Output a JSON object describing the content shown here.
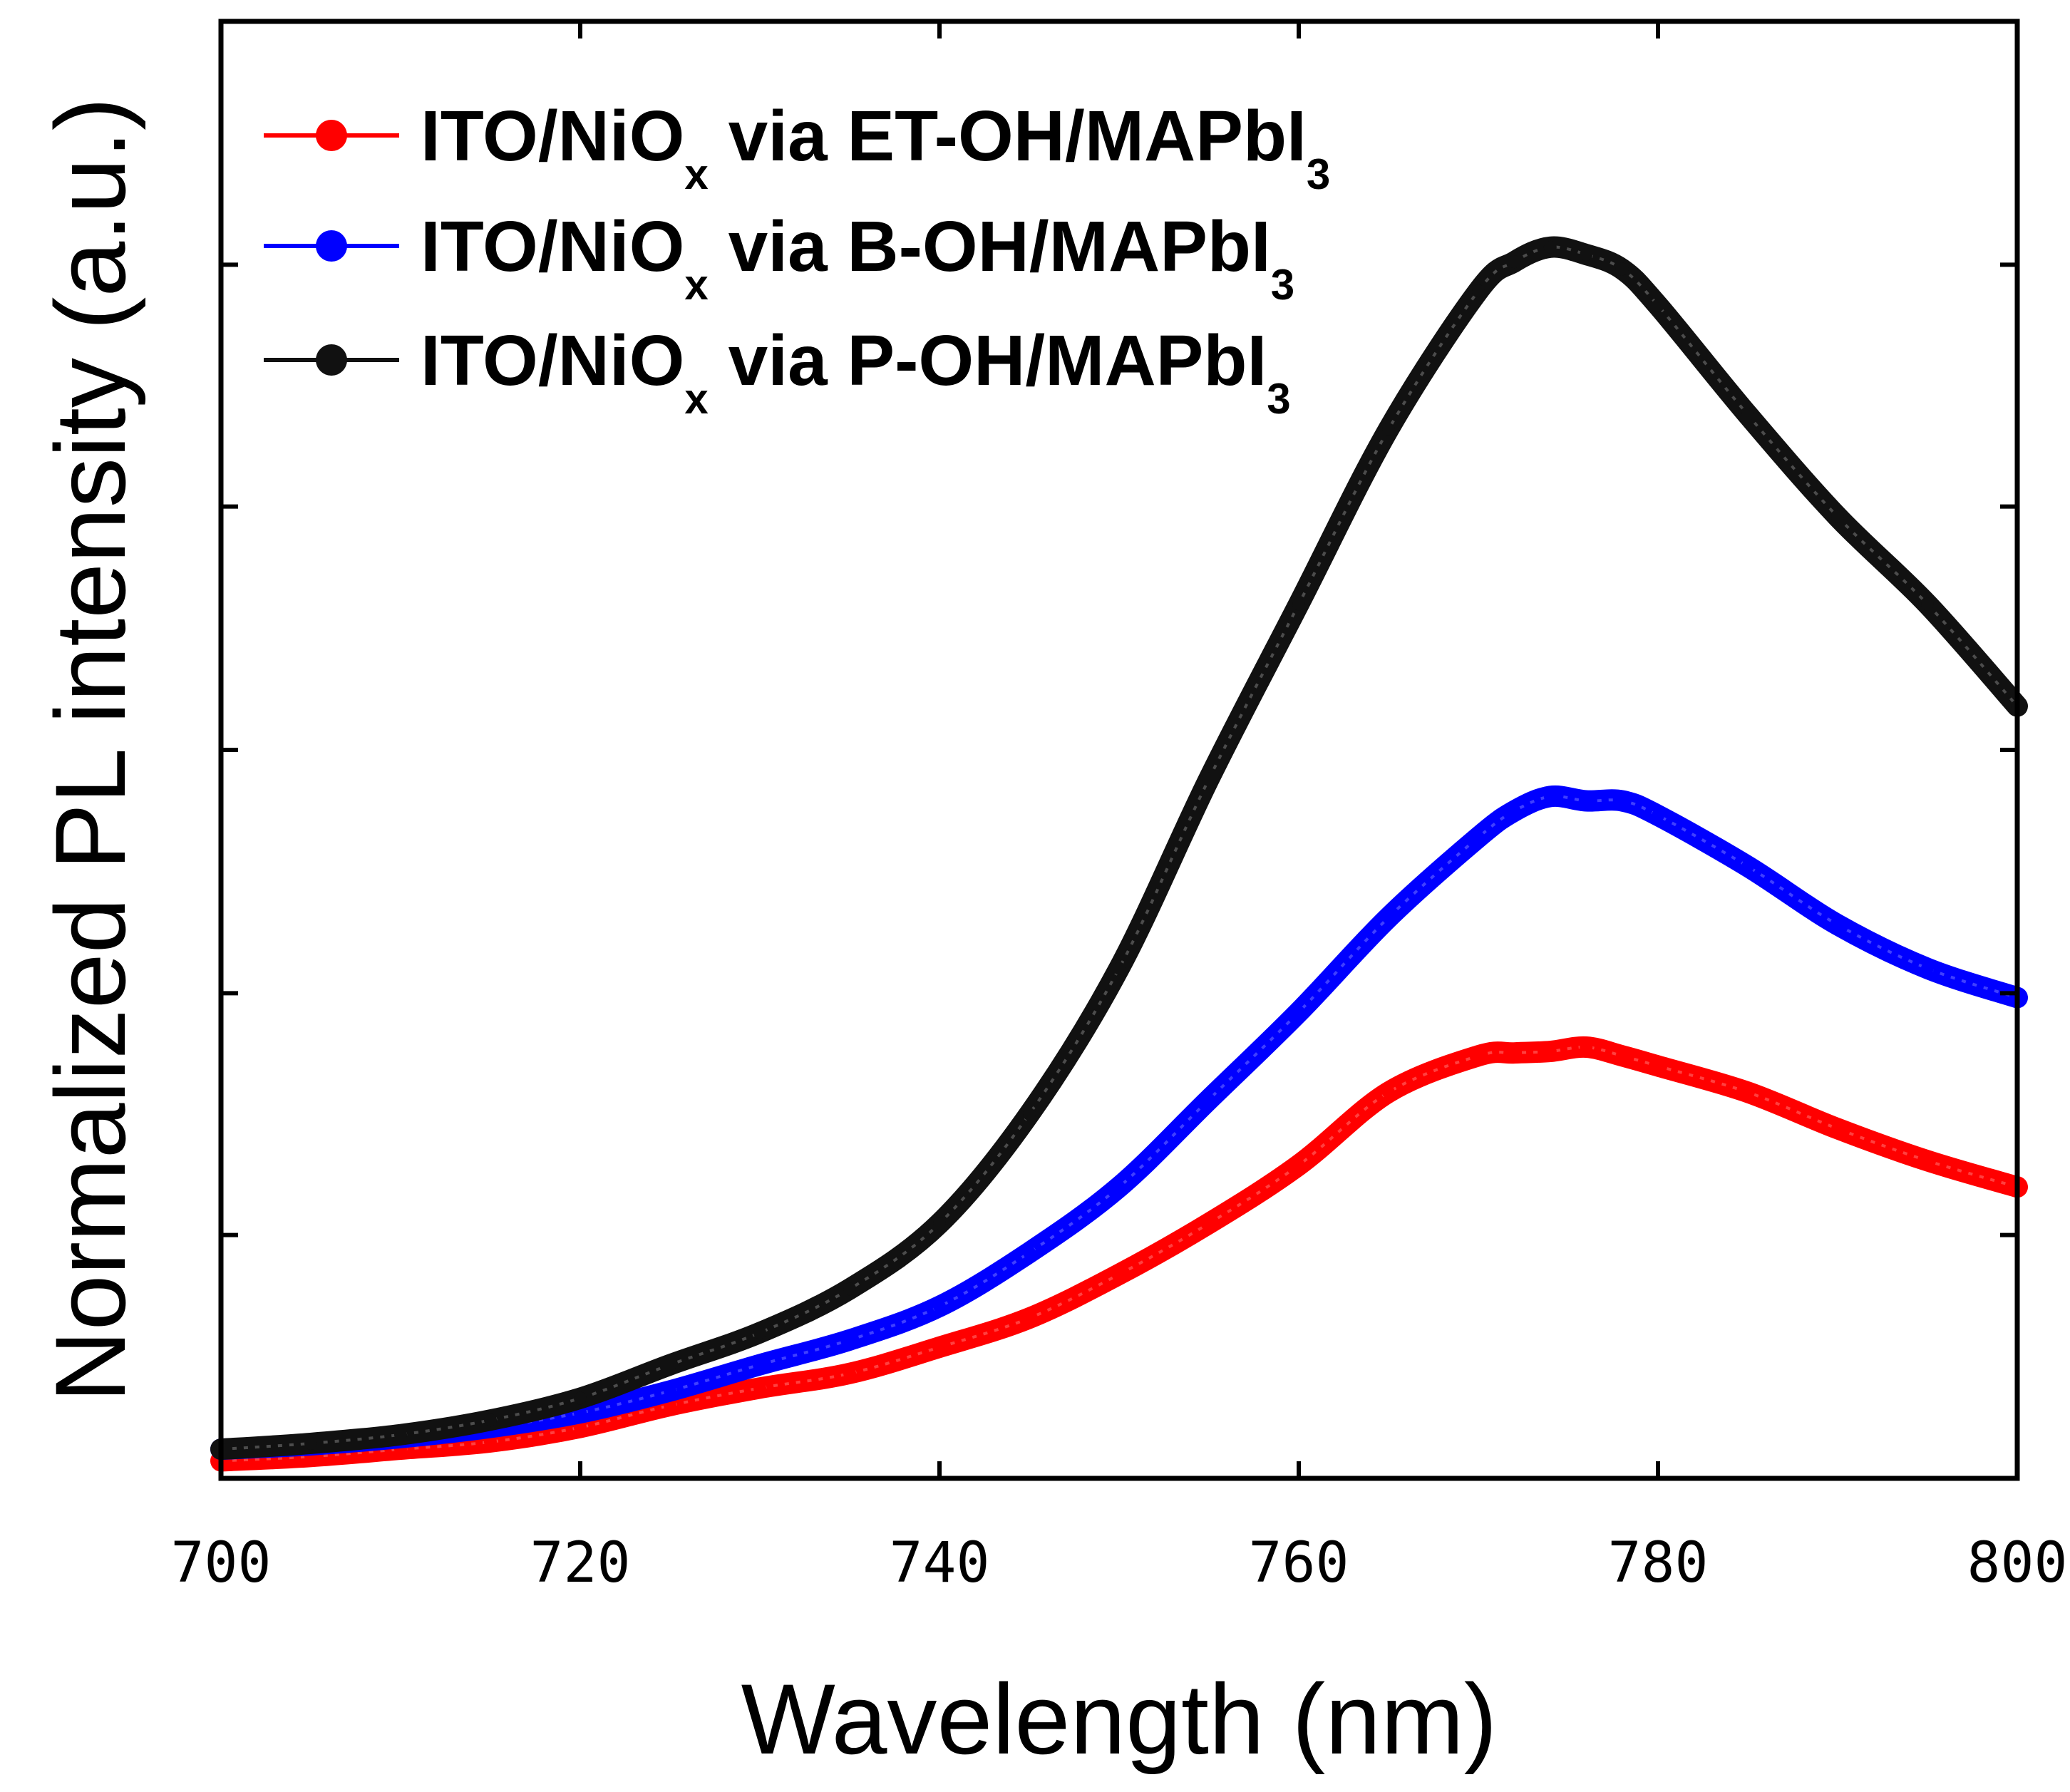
{
  "chart_data": {
    "type": "line",
    "title": "",
    "xlabel": "Wavelength (nm)",
    "ylabel": "Normalized PL intensity (a.u.)",
    "xlim": [
      700,
      800
    ],
    "ylim": [
      0,
      1
    ],
    "xticks": [
      700,
      720,
      740,
      760,
      780,
      800
    ],
    "xtick_labels": [
      "700",
      "720",
      "740",
      "760",
      "780",
      "800"
    ],
    "yticks": [
      0.0,
      0.167,
      0.333,
      0.5,
      0.667,
      0.833
    ],
    "ytick_labels_shown": false,
    "grid": false,
    "legend_position": "top-left",
    "x": [
      700,
      705,
      710,
      715,
      720,
      725,
      730,
      735,
      740,
      745,
      750,
      755,
      760,
      765,
      770,
      772,
      774,
      776,
      778,
      780,
      785,
      790,
      795,
      800
    ],
    "series": [
      {
        "name": "ITO/NiOx via ET-OH/MAPbI3",
        "label_main": "ITO/NiO",
        "label_sub": "x",
        "label_mid": " via ET-OH/MAPbI",
        "label_sub2": "3",
        "color": "#ff0000",
        "values": [
          0.012,
          0.015,
          0.02,
          0.025,
          0.035,
          0.05,
          0.062,
          0.072,
          0.09,
          0.11,
          0.14,
          0.175,
          0.215,
          0.265,
          0.29,
          0.292,
          0.293,
          0.296,
          0.29,
          0.283,
          0.265,
          0.24,
          0.218,
          0.2
        ]
      },
      {
        "name": "ITO/NiOx via B-OH/MAPbI3",
        "label_main": "ITO/NiO",
        "label_sub": "x",
        "label_mid": " via B-OH/MAPbI",
        "label_sub2": "3",
        "color": "#0000ff",
        "values": [
          0.02,
          0.023,
          0.028,
          0.035,
          0.045,
          0.06,
          0.078,
          0.095,
          0.118,
          0.155,
          0.2,
          0.26,
          0.32,
          0.385,
          0.44,
          0.458,
          0.468,
          0.465,
          0.465,
          0.455,
          0.42,
          0.38,
          0.35,
          0.33
        ]
      },
      {
        "name": "ITO/NiOx via P-OH/MAPbI3",
        "label_main": "ITO/NiO",
        "label_sub": "x",
        "label_mid": " via P-OH/MAPbI",
        "label_sub2": "3",
        "color": "#111111",
        "values": [
          0.02,
          0.024,
          0.03,
          0.04,
          0.055,
          0.078,
          0.1,
          0.13,
          0.175,
          0.25,
          0.35,
          0.48,
          0.6,
          0.72,
          0.815,
          0.835,
          0.845,
          0.84,
          0.83,
          0.805,
          0.73,
          0.66,
          0.6,
          0.53
        ]
      }
    ]
  }
}
